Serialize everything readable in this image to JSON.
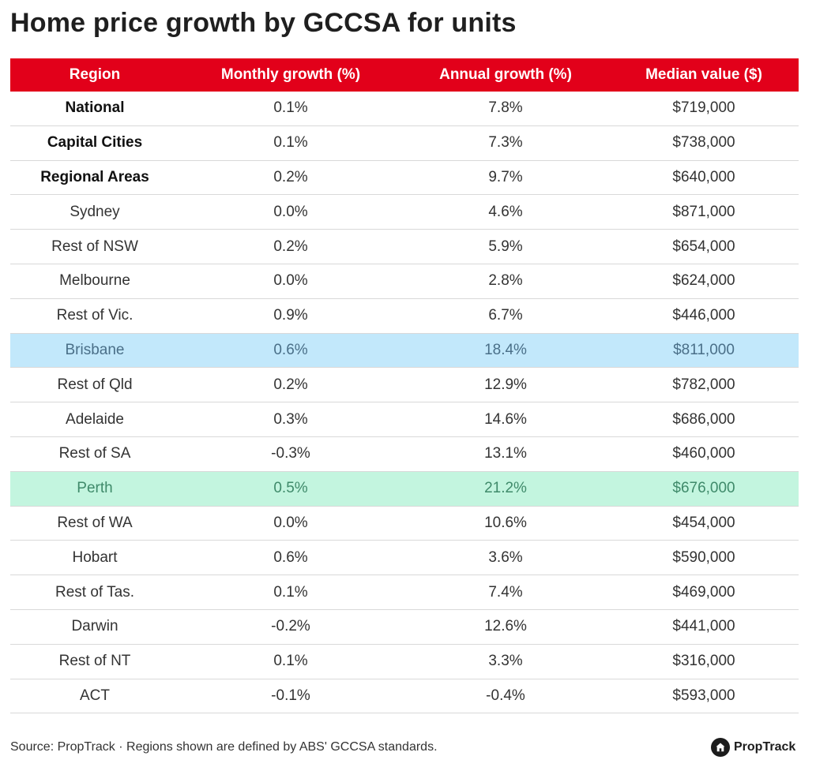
{
  "title": "Home price growth by GCCSA for units",
  "chart_data": {
    "type": "table",
    "title": "Home price growth by GCCSA for units",
    "columns": [
      "Region",
      "Monthly growth (%)",
      "Annual growth (%)",
      "Median value ($)"
    ],
    "rows": [
      {
        "region": "National",
        "monthly": "0.1%",
        "annual": "7.8%",
        "median": "$719,000",
        "style": "bold"
      },
      {
        "region": "Capital Cities",
        "monthly": "0.1%",
        "annual": "7.3%",
        "median": "$738,000",
        "style": "bold"
      },
      {
        "region": "Regional Areas",
        "monthly": "0.2%",
        "annual": "9.7%",
        "median": "$640,000",
        "style": "bold"
      },
      {
        "region": "Sydney",
        "monthly": "0.0%",
        "annual": "4.6%",
        "median": "$871,000",
        "style": "normal"
      },
      {
        "region": "Rest of NSW",
        "monthly": "0.2%",
        "annual": "5.9%",
        "median": "$654,000",
        "style": "normal"
      },
      {
        "region": "Melbourne",
        "monthly": "0.0%",
        "annual": "2.8%",
        "median": "$624,000",
        "style": "normal"
      },
      {
        "region": "Rest of Vic.",
        "monthly": "0.9%",
        "annual": "6.7%",
        "median": "$446,000",
        "style": "normal"
      },
      {
        "region": "Brisbane",
        "monthly": "0.6%",
        "annual": "18.4%",
        "median": "$811,000",
        "style": "hl-blue"
      },
      {
        "region": "Rest of Qld",
        "monthly": "0.2%",
        "annual": "12.9%",
        "median": "$782,000",
        "style": "normal"
      },
      {
        "region": "Adelaide",
        "monthly": "0.3%",
        "annual": "14.6%",
        "median": "$686,000",
        "style": "normal"
      },
      {
        "region": "Rest of SA",
        "monthly": "-0.3%",
        "annual": "13.1%",
        "median": "$460,000",
        "style": "normal"
      },
      {
        "region": "Perth",
        "monthly": "0.5%",
        "annual": "21.2%",
        "median": "$676,000",
        "style": "hl-green"
      },
      {
        "region": "Rest of WA",
        "monthly": "0.0%",
        "annual": "10.6%",
        "median": "$454,000",
        "style": "normal"
      },
      {
        "region": "Hobart",
        "monthly": "0.6%",
        "annual": "3.6%",
        "median": "$590,000",
        "style": "normal"
      },
      {
        "region": "Rest of Tas.",
        "monthly": "0.1%",
        "annual": "7.4%",
        "median": "$469,000",
        "style": "normal"
      },
      {
        "region": "Darwin",
        "monthly": "-0.2%",
        "annual": "12.6%",
        "median": "$441,000",
        "style": "normal"
      },
      {
        "region": "Rest of NT",
        "monthly": "0.1%",
        "annual": "3.3%",
        "median": "$316,000",
        "style": "normal"
      },
      {
        "region": "ACT",
        "monthly": "-0.1%",
        "annual": "-0.4%",
        "median": "$593,000",
        "style": "normal"
      }
    ]
  },
  "footer": {
    "source": "Source: PropTrack · Regions shown are defined by ABS' GCCSA standards.",
    "brand": "PropTrack",
    "brand_icon": "house-icon"
  },
  "colors": {
    "header_bg": "#e2001a",
    "highlight_blue": "#c2e8fb",
    "highlight_green": "#c3f5df"
  }
}
